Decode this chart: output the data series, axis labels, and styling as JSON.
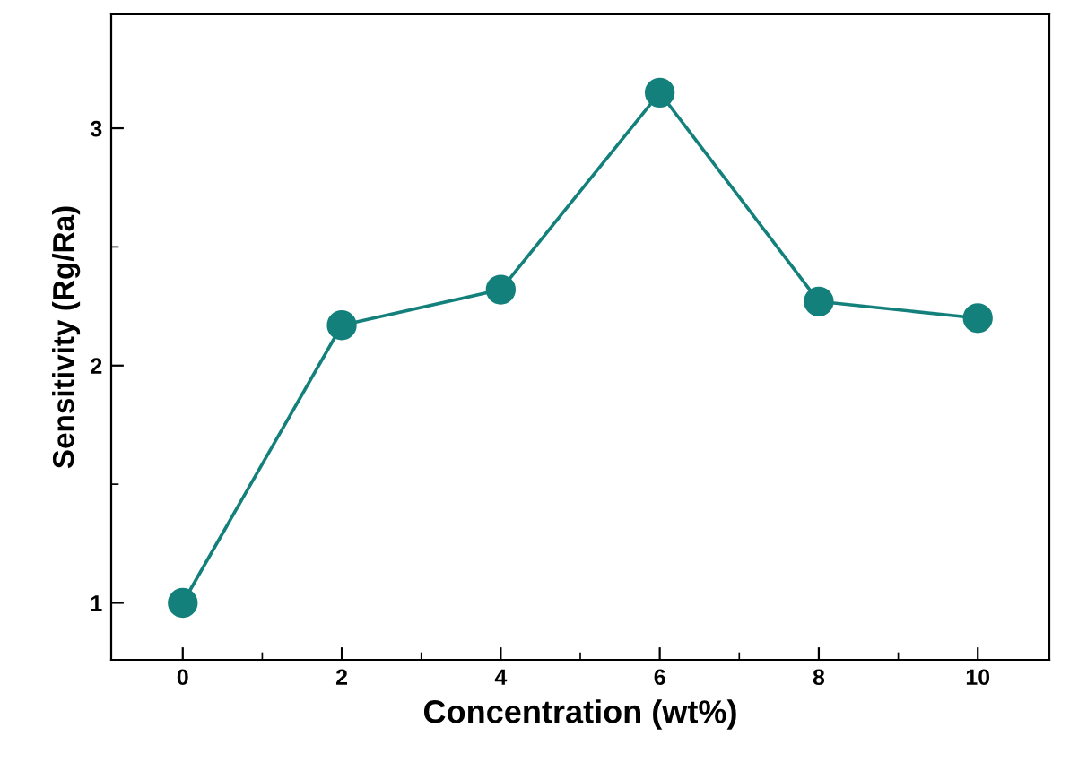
{
  "chart_data": {
    "type": "line",
    "xlabel": "Concentration (wt%)",
    "ylabel": "Sensitivity (Rg/Ra)",
    "x": [
      0,
      2,
      4,
      6,
      8,
      10
    ],
    "series": [
      {
        "color": "#14807c",
        "values": [
          1.0,
          2.17,
          2.32,
          3.15,
          2.27,
          2.2
        ]
      }
    ],
    "marker": "circle",
    "line_style": "solid",
    "grid": false,
    "legend": false,
    "xlim": [
      -0.9,
      10.9
    ],
    "ylim": [
      0.76,
      3.48
    ],
    "xticks": [
      0,
      {
        "value": 1,
        "label": null
      },
      2,
      {
        "value": 3,
        "label": null
      },
      4,
      {
        "value": 5,
        "label": null
      },
      6,
      {
        "value": 7,
        "label": null
      },
      8,
      {
        "value": 9,
        "label": null
      },
      10
    ],
    "yticks": [
      1,
      {
        "value": 1.5,
        "label": null
      },
      2,
      {
        "value": 2.5,
        "label": null
      },
      3
    ]
  }
}
